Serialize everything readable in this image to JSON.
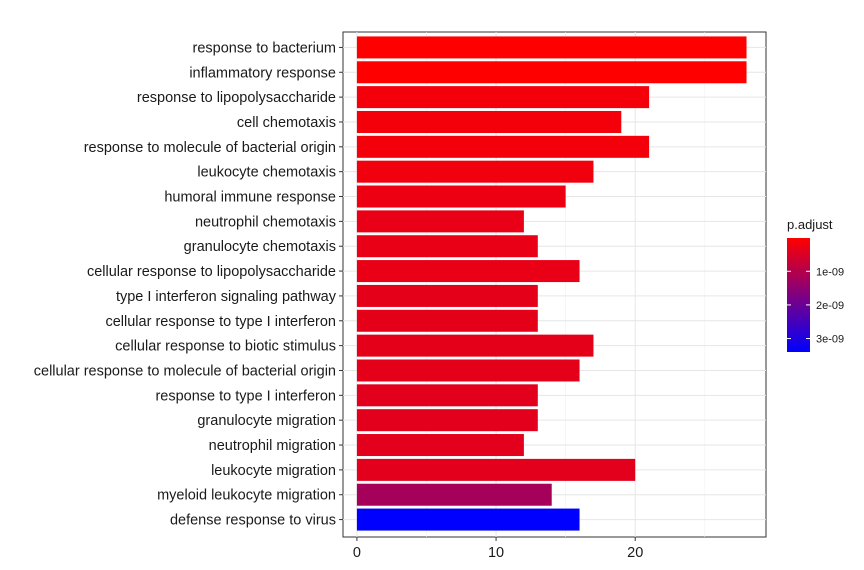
{
  "chart_data": {
    "type": "bar",
    "orientation": "horizontal",
    "categories": [
      "response to bacterium",
      "inflammatory response",
      "response to lipopolysaccharide",
      "cell chemotaxis",
      "response to molecule of bacterial origin",
      "leukocyte chemotaxis",
      "humoral immune response",
      "neutrophil chemotaxis",
      "granulocyte chemotaxis",
      "cellular response to lipopolysaccharide",
      "type I interferon signaling pathway",
      "cellular response to type I interferon",
      "cellular response to biotic stimulus",
      "cellular response to molecule of bacterial origin",
      "response to type I interferon",
      "granulocyte migration",
      "neutrophil migration",
      "leukocyte migration",
      "myeloid leukocyte migration",
      "defense response to virus"
    ],
    "values": [
      28,
      28,
      21,
      19,
      21,
      17,
      15,
      12,
      13,
      16,
      13,
      13,
      17,
      16,
      13,
      13,
      12,
      20,
      14,
      16
    ],
    "p_adjust": [
      1e-11,
      1e-11,
      1.5e-10,
      1.5e-10,
      1.5e-10,
      2e-10,
      2.5e-10,
      3e-10,
      3e-10,
      3e-10,
      3.5e-10,
      3.5e-10,
      3.5e-10,
      3.5e-10,
      4e-10,
      4e-10,
      4e-10,
      4e-10,
      1.2e-09,
      3.4e-09
    ],
    "xlim": [
      -1,
      29.4
    ],
    "xticks": [
      "0",
      "10",
      "20"
    ],
    "xtick_values": [
      0,
      10,
      20
    ],
    "grid": true,
    "legend": {
      "title": "p.adjust",
      "placement": "right",
      "labels": [
        "1e-09",
        "2e-09",
        "3e-09"
      ],
      "label_values": [
        1e-09,
        2e-09,
        3e-09
      ],
      "range": [
        1e-11,
        3.4e-09
      ],
      "color_low": "#FF0000",
      "color_high": "#0000FF"
    }
  }
}
